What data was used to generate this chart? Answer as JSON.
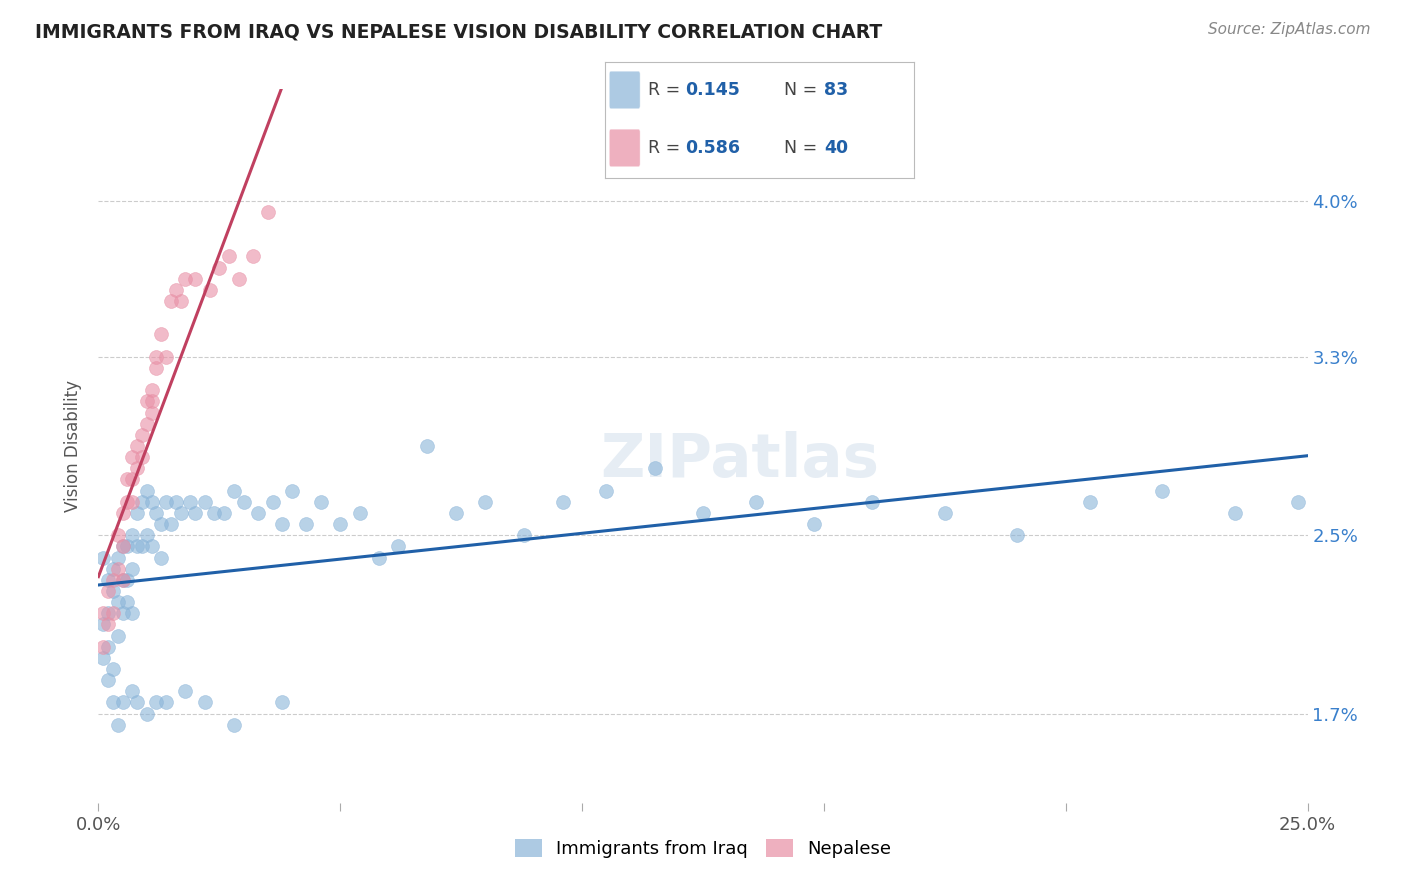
{
  "title": "IMMIGRANTS FROM IRAQ VS NEPALESE VISION DISABILITY CORRELATION CHART",
  "source": "Source: ZipAtlas.com",
  "ylabel": "Vision Disability",
  "xlim": [
    0.0,
    0.25
  ],
  "ylim": [
    0.013,
    0.045
  ],
  "xticks": [
    0.0,
    0.05,
    0.1,
    0.15,
    0.2,
    0.25
  ],
  "xticklabels": [
    "0.0%",
    "",
    "",
    "",
    "",
    "25.0%"
  ],
  "yticks": [
    0.017,
    0.025,
    0.033,
    0.04
  ],
  "yticklabels": [
    "1.7%",
    "2.5%",
    "3.3%",
    "4.0%"
  ],
  "r_iraq": 0.145,
  "n_iraq": 83,
  "r_nepal": 0.586,
  "n_nepal": 40,
  "iraq_color": "#8ab4d8",
  "nepal_color": "#e88fa5",
  "iraq_line_color": "#2060a8",
  "nepal_line_color": "#c04060",
  "watermark": "ZIPatlas",
  "background_color": "#ffffff",
  "grid_color": "#cccccc",
  "legend_r_color": "#2060a8",
  "legend_n_color": "#2060a8",
  "iraq_x": [
    0.001,
    0.001,
    0.001,
    0.002,
    0.002,
    0.002,
    0.003,
    0.003,
    0.003,
    0.004,
    0.004,
    0.004,
    0.005,
    0.005,
    0.005,
    0.006,
    0.006,
    0.006,
    0.007,
    0.007,
    0.007,
    0.008,
    0.008,
    0.009,
    0.009,
    0.01,
    0.01,
    0.011,
    0.011,
    0.012,
    0.013,
    0.013,
    0.014,
    0.015,
    0.016,
    0.017,
    0.019,
    0.02,
    0.022,
    0.024,
    0.026,
    0.028,
    0.03,
    0.033,
    0.036,
    0.038,
    0.04,
    0.043,
    0.046,
    0.05,
    0.054,
    0.058,
    0.062,
    0.068,
    0.074,
    0.08,
    0.088,
    0.096,
    0.105,
    0.115,
    0.125,
    0.136,
    0.148,
    0.16,
    0.175,
    0.19,
    0.205,
    0.22,
    0.235,
    0.248,
    0.002,
    0.003,
    0.004,
    0.005,
    0.007,
    0.008,
    0.01,
    0.012,
    0.014,
    0.018,
    0.022,
    0.028,
    0.038
  ],
  "iraq_y": [
    0.024,
    0.021,
    0.0195,
    0.023,
    0.0215,
    0.02,
    0.0235,
    0.0225,
    0.019,
    0.024,
    0.022,
    0.0205,
    0.0245,
    0.023,
    0.0215,
    0.0245,
    0.023,
    0.022,
    0.025,
    0.0235,
    0.0215,
    0.026,
    0.0245,
    0.0265,
    0.0245,
    0.027,
    0.025,
    0.0265,
    0.0245,
    0.026,
    0.0255,
    0.024,
    0.0265,
    0.0255,
    0.0265,
    0.026,
    0.0265,
    0.026,
    0.0265,
    0.026,
    0.026,
    0.027,
    0.0265,
    0.026,
    0.0265,
    0.0255,
    0.027,
    0.0255,
    0.0265,
    0.0255,
    0.026,
    0.024,
    0.0245,
    0.029,
    0.026,
    0.0265,
    0.025,
    0.0265,
    0.027,
    0.028,
    0.026,
    0.0265,
    0.0255,
    0.0265,
    0.026,
    0.025,
    0.0265,
    0.027,
    0.026,
    0.0265,
    0.0185,
    0.0175,
    0.0165,
    0.0175,
    0.018,
    0.0175,
    0.017,
    0.0175,
    0.0175,
    0.018,
    0.0175,
    0.0165,
    0.0175
  ],
  "nepal_x": [
    0.001,
    0.001,
    0.002,
    0.002,
    0.003,
    0.003,
    0.004,
    0.004,
    0.005,
    0.005,
    0.005,
    0.006,
    0.006,
    0.007,
    0.007,
    0.007,
    0.008,
    0.008,
    0.009,
    0.009,
    0.01,
    0.01,
    0.011,
    0.011,
    0.011,
    0.012,
    0.012,
    0.013,
    0.014,
    0.015,
    0.016,
    0.017,
    0.018,
    0.02,
    0.023,
    0.025,
    0.027,
    0.029,
    0.032,
    0.035
  ],
  "nepal_y": [
    0.0215,
    0.02,
    0.0225,
    0.021,
    0.023,
    0.0215,
    0.025,
    0.0235,
    0.026,
    0.0245,
    0.023,
    0.0275,
    0.0265,
    0.0285,
    0.0275,
    0.0265,
    0.029,
    0.028,
    0.0295,
    0.0285,
    0.031,
    0.03,
    0.0315,
    0.031,
    0.0305,
    0.0325,
    0.033,
    0.034,
    0.033,
    0.0355,
    0.036,
    0.0355,
    0.0365,
    0.0365,
    0.036,
    0.037,
    0.0375,
    0.0365,
    0.0375,
    0.0395
  ]
}
